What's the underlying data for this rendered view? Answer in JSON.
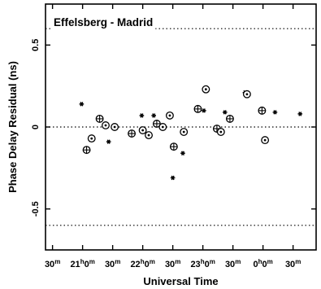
{
  "chart_data": {
    "type": "scatter",
    "title": "Effelsberg - Madrid",
    "xlabel": "Universal Time",
    "ylabel": "Phase Delay Residual (ns)",
    "xlim": [
      "20:23",
      "0:53"
    ],
    "ylim": [
      -0.75,
      0.75
    ],
    "grid": false,
    "legend": "none",
    "reference_lines": [
      0.6,
      0,
      -0.6
    ],
    "x_ticks": [
      {
        "t": "20:30",
        "main": "30",
        "sup": "m"
      },
      {
        "t": "21:00",
        "main": "21",
        "sup": "h",
        "main2": "0",
        "sup2": "m"
      },
      {
        "t": "21:30",
        "main": "30",
        "sup": "m"
      },
      {
        "t": "22:00",
        "main": "22",
        "sup": "h",
        "main2": "0",
        "sup2": "m"
      },
      {
        "t": "22:30",
        "main": "30",
        "sup": "m"
      },
      {
        "t": "23:00",
        "main": "23",
        "sup": "h",
        "main2": "0",
        "sup2": "m"
      },
      {
        "t": "23:30",
        "main": "30",
        "sup": "m"
      },
      {
        "t": "0:00",
        "main": "0",
        "sup": "h",
        "main2": "0",
        "sup2": "m"
      },
      {
        "t": "0:30",
        "main": "30",
        "sup": "m"
      }
    ],
    "y_ticks": [
      {
        "v": 0.5,
        "label": "0.5"
      },
      {
        "v": 0,
        "label": "0"
      },
      {
        "v": -0.5,
        "label": "-0.5"
      }
    ],
    "series": [
      {
        "marker": "star",
        "points": [
          [
            "20:59",
            0.14
          ],
          [
            "21:26",
            -0.09
          ],
          [
            "21:59",
            0.07
          ],
          [
            "22:11",
            0.07
          ],
          [
            "22:30",
            -0.31
          ],
          [
            "22:40",
            -0.16
          ],
          [
            "23:01",
            0.1
          ],
          [
            "23:22",
            0.09
          ],
          [
            "23:42",
            0.21
          ],
          [
            "0:12",
            0.09
          ],
          [
            "0:37",
            0.08
          ]
        ]
      },
      {
        "marker": "circled-plus",
        "points": [
          [
            "21:04",
            -0.14
          ],
          [
            "21:17",
            0.05
          ],
          [
            "21:49",
            -0.04
          ],
          [
            "22:14",
            0.02
          ],
          [
            "22:31",
            -0.12
          ],
          [
            "22:55",
            0.11
          ],
          [
            "23:14",
            -0.01
          ],
          [
            "23:27",
            0.05
          ],
          [
            "23:59",
            0.1
          ]
        ]
      },
      {
        "marker": "circled-dot",
        "points": [
          [
            "21:09",
            -0.07
          ],
          [
            "21:23",
            0.01
          ],
          [
            "21:32",
            0.0
          ],
          [
            "22:00",
            -0.02
          ],
          [
            "22:06",
            -0.05
          ],
          [
            "22:20",
            0.0
          ],
          [
            "22:27",
            0.07
          ],
          [
            "22:41",
            -0.03
          ],
          [
            "23:03",
            0.23
          ],
          [
            "23:18",
            -0.03
          ],
          [
            "23:44",
            0.2
          ],
          [
            "0:02",
            -0.08
          ]
        ]
      }
    ]
  }
}
